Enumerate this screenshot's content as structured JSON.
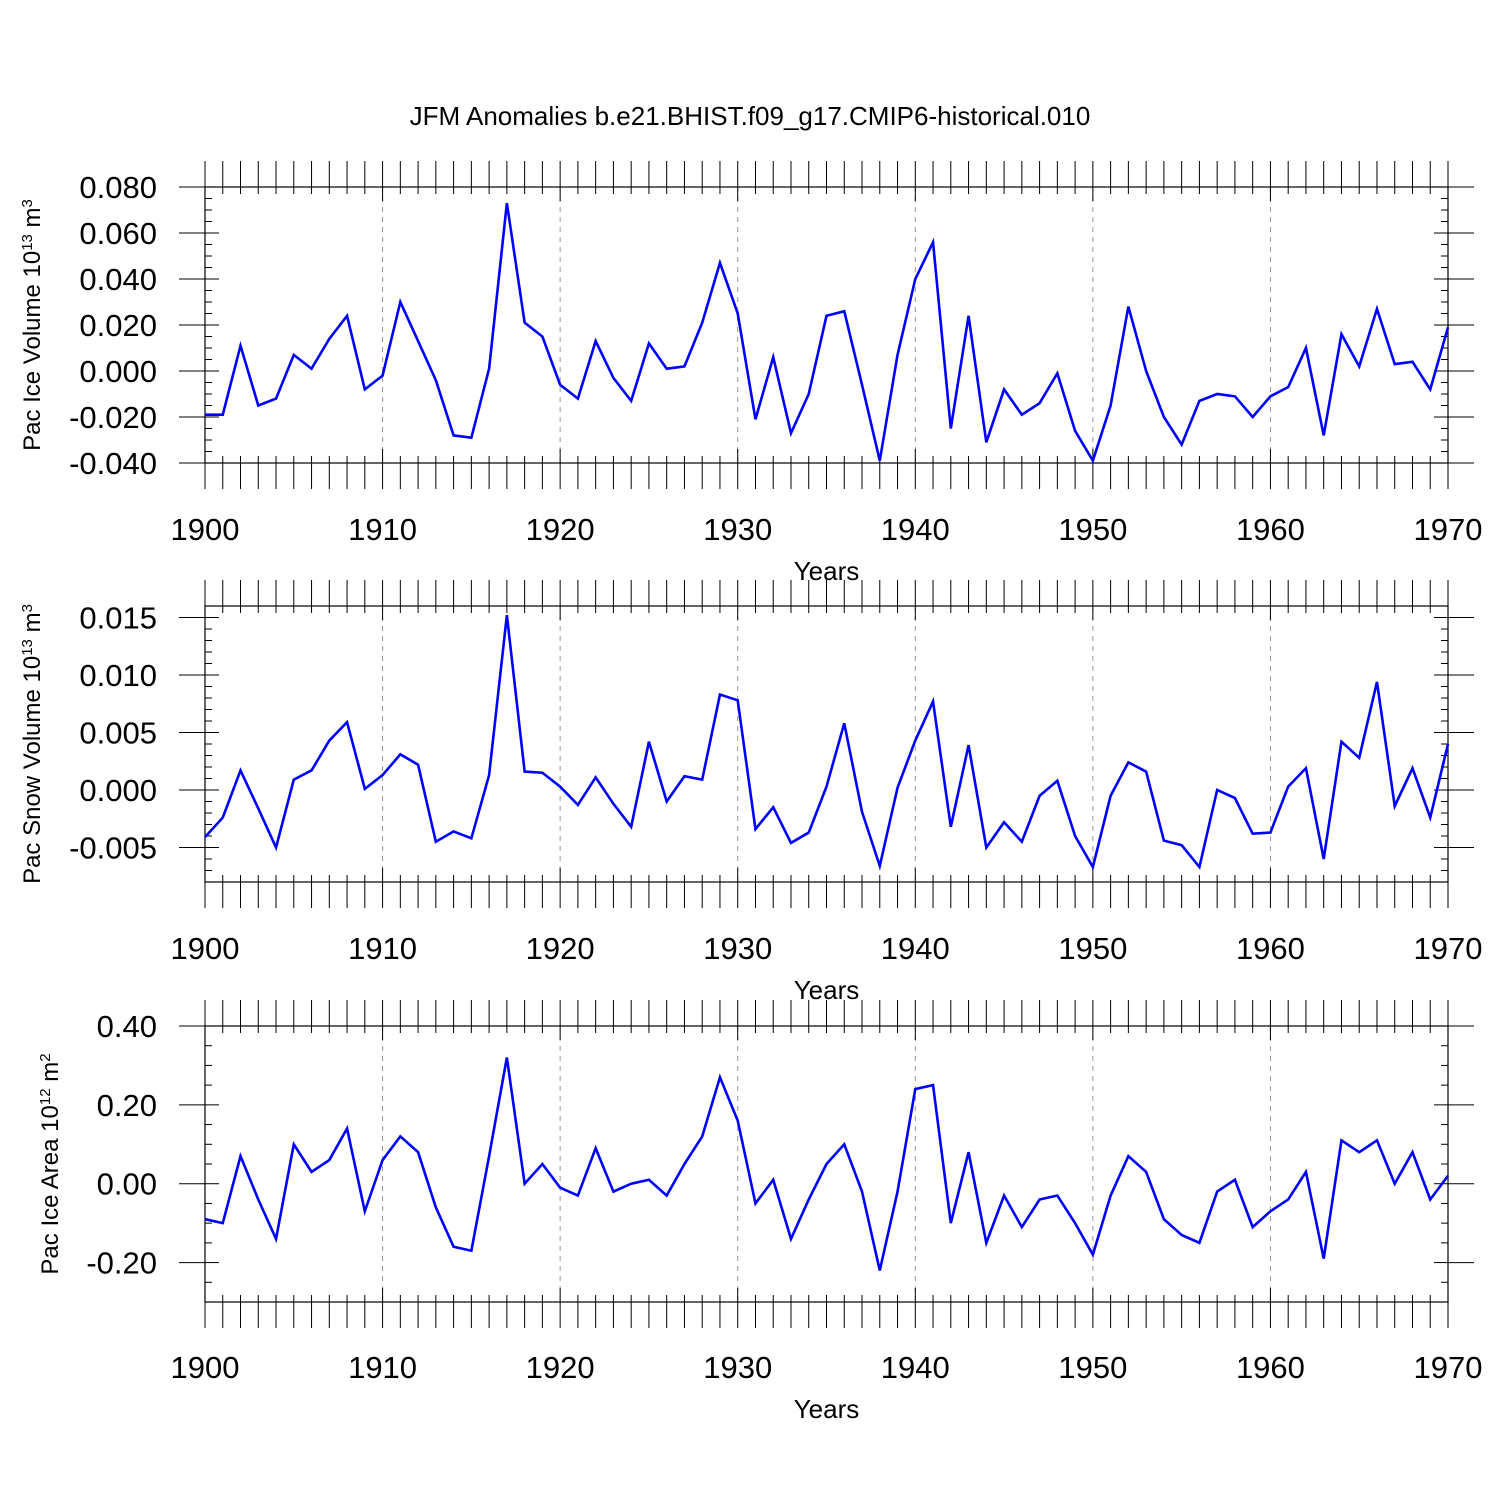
{
  "figure": {
    "title": "JFM Anomalies b.e21.BHIST.f09_g17.CMIP6-historical.010"
  },
  "colors": {
    "series": "#0000ff",
    "axis": "#000000",
    "grid": "#999999",
    "background": "#ffffff"
  },
  "chart_data": [
    {
      "type": "line",
      "title": "JFM Anomalies b.e21.BHIST.f09_g17.CMIP6-historical.010",
      "xlabel": "Years",
      "ylabel": {
        "main": "Pac Ice Volume 10",
        "exp": "13",
        "unit": " m",
        "unit_exp": "3"
      },
      "xlim": [
        1900,
        1970
      ],
      "ylim": [
        -0.04,
        0.08
      ],
      "x_ticks": [
        1900,
        1910,
        1920,
        1930,
        1940,
        1950,
        1960,
        1970
      ],
      "x_tick_labels": [
        "1900",
        "1910",
        "1920",
        "1930",
        "1940",
        "1950",
        "1960",
        "1970"
      ],
      "y_ticks": [
        -0.04,
        -0.02,
        0.0,
        0.02,
        0.04,
        0.06,
        0.08
      ],
      "y_tick_labels": [
        "-0.040",
        "-0.020",
        "0.000",
        "0.020",
        "0.040",
        "0.060",
        "0.080"
      ],
      "y_minor_step": 0.005,
      "grid": "vertical dashed at decades",
      "series": [
        {
          "name": "Pac Ice Volume",
          "x_start": 1900,
          "values": [
            -0.019,
            -0.019,
            0.011,
            -0.015,
            -0.012,
            0.007,
            0.001,
            0.014,
            0.024,
            -0.008,
            -0.002,
            0.03,
            0.013,
            -0.004,
            -0.028,
            -0.029,
            0.001,
            0.073,
            0.021,
            0.015,
            -0.006,
            -0.012,
            0.013,
            -0.003,
            -0.013,
            0.012,
            0.001,
            0.002,
            0.021,
            0.047,
            0.025,
            -0.021,
            0.006,
            -0.027,
            -0.01,
            0.024,
            0.026,
            -0.006,
            -0.039,
            0.007,
            0.04,
            0.056,
            -0.025,
            0.024,
            -0.031,
            -0.008,
            -0.019,
            -0.014,
            -0.001,
            -0.026,
            -0.039,
            -0.015,
            0.028,
            0.0,
            -0.02,
            -0.032,
            -0.013,
            -0.01,
            -0.011,
            -0.02,
            -0.011,
            -0.007,
            0.01,
            -0.028,
            0.016,
            0.002,
            0.027,
            0.003,
            0.004,
            -0.008,
            0.019
          ]
        }
      ]
    },
    {
      "type": "line",
      "xlabel": "Years",
      "ylabel": {
        "main": "Pac Snow Volume 10",
        "exp": "13",
        "unit": " m",
        "unit_exp": "3"
      },
      "xlim": [
        1900,
        1970
      ],
      "ylim": [
        -0.008,
        0.016
      ],
      "x_ticks": [
        1900,
        1910,
        1920,
        1930,
        1940,
        1950,
        1960,
        1970
      ],
      "x_tick_labels": [
        "1900",
        "1910",
        "1920",
        "1930",
        "1940",
        "1950",
        "1960",
        "1970"
      ],
      "y_ticks": [
        -0.005,
        0.0,
        0.005,
        0.01,
        0.015
      ],
      "y_tick_labels": [
        "-0.005",
        "0.000",
        "0.005",
        "0.010",
        "0.015"
      ],
      "y_minor_step": 0.001,
      "grid": "vertical dashed at decades",
      "series": [
        {
          "name": "Pac Snow Volume",
          "x_start": 1900,
          "values": [
            -0.0041,
            -0.0024,
            0.0017,
            -0.0016,
            -0.005,
            0.0009,
            0.0017,
            0.0043,
            0.0059,
            0.0001,
            0.0013,
            0.0031,
            0.0022,
            -0.0045,
            -0.0036,
            -0.0042,
            0.0013,
            0.0152,
            0.0016,
            0.0015,
            0.0003,
            -0.0013,
            0.0011,
            -0.0012,
            -0.0032,
            0.0042,
            -0.001,
            0.0012,
            0.0009,
            0.0083,
            0.0078,
            -0.0034,
            -0.0015,
            -0.0046,
            -0.0037,
            0.0003,
            0.0058,
            -0.0019,
            -0.0066,
            0.0002,
            0.0043,
            0.0077,
            -0.0032,
            0.0039,
            -0.005,
            -0.0028,
            -0.0045,
            -0.0005,
            0.0008,
            -0.004,
            -0.0067,
            -0.0005,
            0.0024,
            0.0016,
            -0.0044,
            -0.0048,
            -0.0067,
            0.0,
            -0.0007,
            -0.0038,
            -0.0037,
            0.0003,
            0.0019,
            -0.006,
            0.0042,
            0.0028,
            0.0094,
            -0.0014,
            0.0019,
            -0.0024,
            0.004
          ]
        }
      ]
    },
    {
      "type": "line",
      "xlabel": "Years",
      "ylabel": {
        "main": "Pac Ice Area 10",
        "exp": "12",
        "unit": " m",
        "unit_exp": "2"
      },
      "xlim": [
        1900,
        1970
      ],
      "ylim": [
        -0.3,
        0.4
      ],
      "x_ticks": [
        1900,
        1910,
        1920,
        1930,
        1940,
        1950,
        1960,
        1970
      ],
      "x_tick_labels": [
        "1900",
        "1910",
        "1920",
        "1930",
        "1940",
        "1950",
        "1960",
        "1970"
      ],
      "y_ticks": [
        -0.2,
        0.0,
        0.2,
        0.4
      ],
      "y_tick_labels": [
        "-0.20",
        "0.00",
        "0.20",
        "0.40"
      ],
      "y_minor_step": 0.05,
      "grid": "vertical dashed at decades",
      "series": [
        {
          "name": "Pac Ice Area",
          "x_start": 1900,
          "values": [
            -0.09,
            -0.1,
            0.07,
            -0.04,
            -0.14,
            0.1,
            0.03,
            0.06,
            0.14,
            -0.07,
            0.06,
            0.12,
            0.08,
            -0.06,
            -0.16,
            -0.17,
            0.07,
            0.32,
            0.0,
            0.05,
            -0.01,
            -0.03,
            0.09,
            -0.02,
            0.0,
            0.01,
            -0.03,
            0.05,
            0.12,
            0.27,
            0.16,
            -0.05,
            0.01,
            -0.14,
            -0.04,
            0.05,
            0.1,
            -0.02,
            -0.22,
            -0.02,
            0.24,
            0.25,
            -0.1,
            0.08,
            -0.15,
            -0.03,
            -0.11,
            -0.04,
            -0.03,
            -0.1,
            -0.18,
            -0.03,
            0.07,
            0.03,
            -0.09,
            -0.13,
            -0.15,
            -0.02,
            0.01,
            -0.11,
            -0.07,
            -0.04,
            0.03,
            -0.19,
            0.11,
            0.08,
            0.11,
            0.0,
            0.08,
            -0.04,
            0.02
          ]
        }
      ]
    }
  ]
}
